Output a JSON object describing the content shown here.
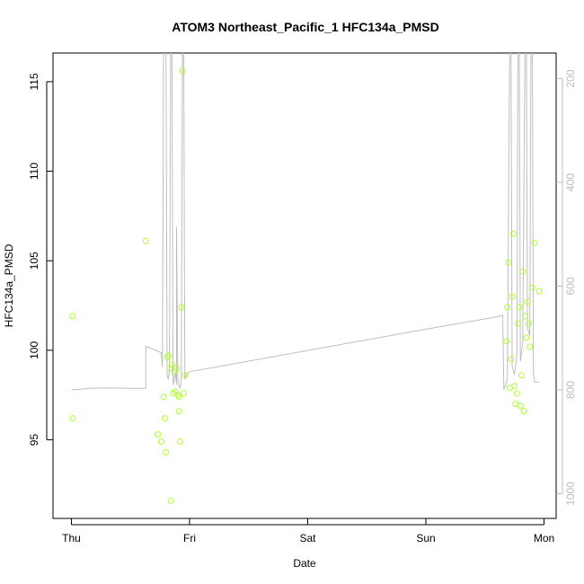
{
  "chart_data": {
    "type": "scatter",
    "title": "ATOM3 Northeast_Pacific_1 HFC134a_PMSD",
    "xlabel": "Date",
    "ylabel": "HFC134a_PMSD",
    "x_ticks": [
      "Thu",
      "Fri",
      "Sat",
      "Sun",
      "Mon"
    ],
    "y_ticks": [
      95,
      100,
      105,
      110,
      115
    ],
    "y_right_ticks": [
      200,
      400,
      600,
      800,
      1000
    ],
    "xlim": [
      -0.01,
      4.13
    ],
    "ylim": [
      90.7,
      116.5
    ],
    "y_right_lim": [
      1015,
      150
    ],
    "grid": false,
    "colors": {
      "points": "#adff2f",
      "line": "#bebebe",
      "axis": "#000000",
      "right_axis": "#bdbdbd"
    },
    "series": [
      {
        "type": "scatter",
        "points": [
          [
            0.01,
            101.9
          ],
          [
            0.01,
            96.2
          ],
          [
            0.63,
            106.1
          ],
          [
            0.73,
            95.3
          ],
          [
            0.76,
            94.9
          ],
          [
            0.78,
            97.4
          ],
          [
            0.79,
            96.2
          ],
          [
            0.8,
            94.3
          ],
          [
            0.81,
            99.6
          ],
          [
            0.82,
            99.7
          ],
          [
            0.83,
            99.0
          ],
          [
            0.84,
            91.6
          ],
          [
            0.85,
            99.2
          ],
          [
            0.86,
            97.6
          ],
          [
            0.87,
            98.8
          ],
          [
            0.88,
            97.7
          ],
          [
            0.89,
            99.0
          ],
          [
            0.9,
            97.5
          ],
          [
            0.91,
            97.4
          ],
          [
            0.91,
            96.6
          ],
          [
            0.92,
            94.9
          ],
          [
            0.93,
            102.4
          ],
          [
            0.94,
            115.6
          ],
          [
            0.95,
            97.6
          ],
          [
            0.96,
            98.6
          ],
          [
            3.68,
            100.5
          ],
          [
            3.69,
            102.4
          ],
          [
            3.7,
            104.9
          ],
          [
            3.71,
            97.9
          ],
          [
            3.72,
            99.5
          ],
          [
            3.73,
            103.0
          ],
          [
            3.74,
            106.5
          ],
          [
            3.75,
            98.0
          ],
          [
            3.76,
            97.0
          ],
          [
            3.77,
            97.6
          ],
          [
            3.78,
            101.5
          ],
          [
            3.79,
            102.4
          ],
          [
            3.8,
            96.9
          ],
          [
            3.81,
            98.6
          ],
          [
            3.82,
            104.4
          ],
          [
            3.83,
            96.6
          ],
          [
            3.84,
            101.9
          ],
          [
            3.85,
            100.7
          ],
          [
            3.86,
            102.7
          ],
          [
            3.87,
            101.5
          ],
          [
            3.88,
            100.2
          ],
          [
            3.9,
            103.5
          ],
          [
            3.92,
            106.0
          ],
          [
            3.96,
            103.3
          ]
        ]
      },
      {
        "type": "line",
        "axis": "right",
        "points": [
          [
            0.0,
            800
          ],
          [
            0.15,
            797
          ],
          [
            0.3,
            796
          ],
          [
            0.5,
            797
          ],
          [
            0.62,
            797
          ],
          [
            0.63,
            797
          ],
          [
            0.63,
            716
          ],
          [
            0.76,
            728
          ],
          [
            0.77,
            756
          ],
          [
            0.78,
            100
          ],
          [
            0.79,
            100
          ],
          [
            0.8,
            100
          ],
          [
            0.81,
            770
          ],
          [
            0.82,
            780
          ],
          [
            0.83,
            760
          ],
          [
            0.84,
            100
          ],
          [
            0.85,
            100
          ],
          [
            0.86,
            790
          ],
          [
            0.87,
            780
          ],
          [
            0.88,
            765
          ],
          [
            0.89,
            790
          ],
          [
            0.89,
            486
          ],
          [
            0.9,
            780
          ],
          [
            0.91,
            792
          ],
          [
            0.92,
            796
          ],
          [
            0.93,
            780
          ],
          [
            0.94,
            100
          ],
          [
            0.95,
            100
          ],
          [
            0.96,
            780
          ],
          [
            0.97,
            770
          ],
          [
            1.0,
            765
          ],
          [
            3.0,
            683
          ],
          [
            3.6,
            659
          ],
          [
            3.65,
            656
          ],
          [
            3.66,
            800
          ],
          [
            3.69,
            780
          ],
          [
            3.71,
            100
          ],
          [
            3.72,
            100
          ],
          [
            3.73,
            755
          ],
          [
            3.75,
            770
          ],
          [
            3.77,
            735
          ],
          [
            3.78,
            100
          ],
          [
            3.79,
            100
          ],
          [
            3.8,
            745
          ],
          [
            3.82,
            710
          ],
          [
            3.84,
            100
          ],
          [
            3.85,
            100
          ],
          [
            3.86,
            680
          ],
          [
            3.88,
            695
          ],
          [
            3.89,
            100
          ],
          [
            3.9,
            100
          ],
          [
            3.91,
            770
          ],
          [
            3.92,
            785
          ],
          [
            3.94,
            785
          ],
          [
            3.96,
            785
          ]
        ]
      }
    ]
  }
}
